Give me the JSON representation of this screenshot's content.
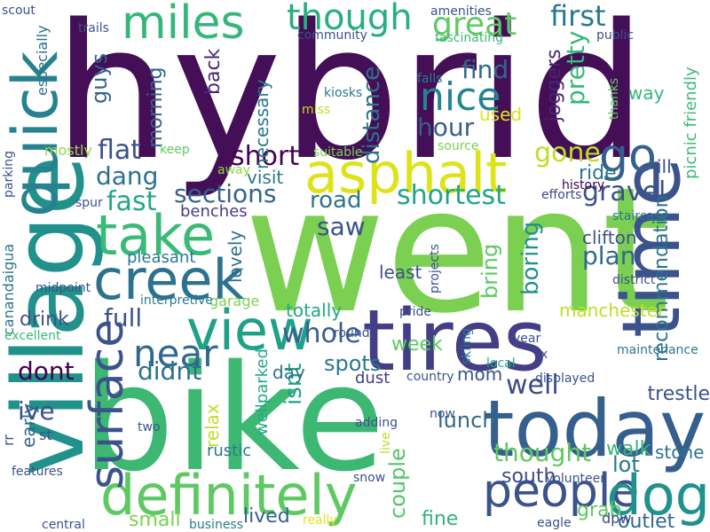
{
  "words": [
    {
      "text": "hybrid",
      "color": "#440f56",
      "rotate": false
    },
    {
      "text": "went",
      "color": "#7bd052",
      "rotate": false
    },
    {
      "text": "bike",
      "color": "#3cb873",
      "rotate": false
    },
    {
      "text": "village",
      "color": "#21918c",
      "rotate": true
    },
    {
      "text": "tires",
      "color": "#433e85",
      "rotate": false
    },
    {
      "text": "time",
      "color": "#3b528b",
      "rotate": true
    },
    {
      "text": "today",
      "color": "#355f8d",
      "rotate": false
    },
    {
      "text": "asphalt",
      "color": "#dde318",
      "rotate": false
    },
    {
      "text": "definitely",
      "color": "#5ec962",
      "rotate": false
    },
    {
      "text": "creek",
      "color": "#2c728e",
      "rotate": false
    },
    {
      "text": "miles",
      "color": "#35b779",
      "rotate": false
    },
    {
      "text": "take",
      "color": "#3aba76",
      "rotate": false
    },
    {
      "text": "view",
      "color": "#1fa187",
      "rotate": false
    },
    {
      "text": "people",
      "color": "#3b528b",
      "rotate": false
    },
    {
      "text": "quick",
      "color": "#26828e",
      "rotate": true
    },
    {
      "text": "dog",
      "color": "#21918c",
      "rotate": false
    },
    {
      "text": "go",
      "color": "#355f8d",
      "rotate": false
    },
    {
      "text": "surface",
      "color": "#3b528b",
      "rotate": true
    },
    {
      "text": "nice",
      "color": "#25858e",
      "rotate": false
    },
    {
      "text": "though",
      "color": "#29af7f",
      "rotate": false
    },
    {
      "text": "great",
      "color": "#5ec962",
      "rotate": false
    },
    {
      "text": "first",
      "color": "#2a788e",
      "rotate": false
    },
    {
      "text": "near",
      "color": "#31688e",
      "rotate": false
    },
    {
      "text": "distance",
      "color": "#2c728e",
      "rotate": true
    },
    {
      "text": "find",
      "color": "#31688e",
      "rotate": false
    },
    {
      "text": "pretty",
      "color": "#35b779",
      "rotate": true
    },
    {
      "text": "hour",
      "color": "#355f8d",
      "rotate": false
    },
    {
      "text": "guys",
      "color": "#33638d",
      "rotate": true
    },
    {
      "text": "flat",
      "color": "#3b528b",
      "rotate": false
    },
    {
      "text": "short",
      "color": "#440154",
      "rotate": false
    },
    {
      "text": "dang",
      "color": "#2c728e",
      "rotate": false
    },
    {
      "text": "fast",
      "color": "#22a884",
      "rotate": false
    },
    {
      "text": "sections",
      "color": "#33638d",
      "rotate": false
    },
    {
      "text": "shortest",
      "color": "#20a486",
      "rotate": false
    },
    {
      "text": "gravel",
      "color": "#3b528b",
      "rotate": false
    },
    {
      "text": "road",
      "color": "#2a788e",
      "rotate": false
    },
    {
      "text": "gone",
      "color": "#bddf26",
      "rotate": false
    },
    {
      "text": "ride",
      "color": "#2a788e",
      "rotate": false
    },
    {
      "text": "recommendation",
      "color": "#2c728e",
      "rotate": true
    },
    {
      "text": "picnic friendly",
      "color": "#3cbb75",
      "rotate": true
    },
    {
      "text": "plan",
      "color": "#31688e",
      "rotate": false
    },
    {
      "text": "boring",
      "color": "#21918c",
      "rotate": true
    },
    {
      "text": "bring",
      "color": "#5ec962",
      "rotate": true
    },
    {
      "text": "full",
      "color": "#3b528b",
      "rotate": false
    },
    {
      "text": "whole",
      "color": "#355f8d",
      "rotate": false
    },
    {
      "text": "didnt",
      "color": "#2c728e",
      "rotate": false
    },
    {
      "text": "dont",
      "color": "#440154",
      "rotate": false
    },
    {
      "text": "well",
      "color": "#3e4989",
      "rotate": false
    },
    {
      "text": "ive",
      "color": "#3b528b",
      "rotate": false
    },
    {
      "text": "thought",
      "color": "#5ec962",
      "rotate": false
    },
    {
      "text": "isnt",
      "color": "#1fa187",
      "rotate": true
    },
    {
      "text": "spots",
      "color": "#2a788e",
      "rotate": false
    },
    {
      "text": "lunch",
      "color": "#31688e",
      "rotate": false
    },
    {
      "text": "walk",
      "color": "#35b779",
      "rotate": false
    },
    {
      "text": "lot",
      "color": "#2a788e",
      "rotate": false
    },
    {
      "text": "couple",
      "color": "#52c569",
      "rotate": true
    },
    {
      "text": "small",
      "color": "#7ad151",
      "rotate": false
    },
    {
      "text": "lived",
      "color": "#33638d",
      "rotate": false
    },
    {
      "text": "grab",
      "color": "#5ec962",
      "rotate": false
    },
    {
      "text": "outlet",
      "color": "#31688e",
      "rotate": false
    },
    {
      "text": "fine",
      "color": "#2fb47c",
      "rotate": false
    },
    {
      "text": "stone",
      "color": "#2c728e",
      "rotate": false
    },
    {
      "text": "trestle",
      "color": "#3b528b",
      "rotate": false
    },
    {
      "text": "south",
      "color": "#3e4989",
      "rotate": false
    },
    {
      "text": "manchester",
      "color": "#bddf26",
      "rotate": false
    },
    {
      "text": "totally",
      "color": "#22a884",
      "rotate": false
    },
    {
      "text": "lovely",
      "color": "#2c728e",
      "rotate": true
    },
    {
      "text": "pleasant",
      "color": "#2a788e",
      "rotate": false
    },
    {
      "text": "benches",
      "color": "#433e85",
      "rotate": false
    },
    {
      "text": "visit",
      "color": "#2a788e",
      "rotate": false
    },
    {
      "text": "necessary",
      "color": "#2a788e",
      "rotate": true
    },
    {
      "text": "saw",
      "color": "#3b528b",
      "rotate": false
    },
    {
      "text": "drink",
      "color": "#3b528b",
      "rotate": false
    },
    {
      "text": "week",
      "color": "#5ec962",
      "rotate": false
    },
    {
      "text": "mom",
      "color": "#3b528b",
      "rotate": false
    },
    {
      "text": "day",
      "color": "#2c728e",
      "rotate": false
    },
    {
      "text": "used",
      "color": "#dde318",
      "rotate": false
    },
    {
      "text": "way",
      "color": "#35b779",
      "rotate": false
    },
    {
      "text": "joggers",
      "color": "#482475",
      "rotate": true
    },
    {
      "text": "morning",
      "color": "#33638d",
      "rotate": true
    },
    {
      "text": "back",
      "color": "#482878",
      "rotate": true
    },
    {
      "text": "clifton",
      "color": "#3b528b",
      "rotate": false
    },
    {
      "text": "least",
      "color": "#3b528b",
      "rotate": false
    },
    {
      "text": "mostly",
      "color": "#8fd744",
      "rotate": false
    },
    {
      "text": "wellparked",
      "color": "#22a884",
      "rotate": true
    },
    {
      "text": "relax",
      "color": "#bddf26",
      "rotate": true
    },
    {
      "text": "dust",
      "color": "#433e85",
      "rotate": false
    },
    {
      "text": "ill",
      "color": "#3b528b",
      "rotate": false
    },
    {
      "text": "history",
      "color": "#440154",
      "rotate": false
    },
    {
      "text": "efforts",
      "color": "#414487",
      "rotate": false
    },
    {
      "text": "dpw",
      "color": "#3e4989",
      "rotate": false
    },
    {
      "text": "canandaigua",
      "color": "#2a788e",
      "rotate": true
    },
    {
      "text": "rr",
      "color": "#3b528b",
      "rotate": true
    },
    {
      "text": "early",
      "color": "#31688e",
      "rotate": true
    },
    {
      "text": "st",
      "color": "#3b528b",
      "rotate": false
    },
    {
      "text": "rustic",
      "color": "#2a788e",
      "rotate": false
    },
    {
      "text": "garage",
      "color": "#7ad151",
      "rotate": false
    },
    {
      "text": "interpretive",
      "color": "#2a788e",
      "rotate": false
    },
    {
      "text": "especially",
      "color": "#2c728e",
      "rotate": true
    },
    {
      "text": "scout",
      "color": "#3b528b",
      "rotate": false
    },
    {
      "text": "trails",
      "color": "#3b528b",
      "rotate": false
    },
    {
      "text": "community",
      "color": "#3b528b",
      "rotate": false
    },
    {
      "text": "amenities",
      "color": "#3b528b",
      "rotate": false
    },
    {
      "text": "fascinating",
      "color": "#3cb873",
      "rotate": false
    },
    {
      "text": "public",
      "color": "#3b528b",
      "rotate": false
    },
    {
      "text": "falls",
      "color": "#2a788e",
      "rotate": false
    },
    {
      "text": "thanks",
      "color": "#5ec962",
      "rotate": true
    },
    {
      "text": "kiosks",
      "color": "#2a788e",
      "rotate": false
    },
    {
      "text": "miss",
      "color": "#bddf26",
      "rotate": false
    },
    {
      "text": "keep",
      "color": "#5ec962",
      "rotate": false
    },
    {
      "text": "suitable",
      "color": "#7ad151",
      "rotate": false
    },
    {
      "text": "source",
      "color": "#7ad151",
      "rotate": false
    },
    {
      "text": "away",
      "color": "#8fd744",
      "rotate": false
    },
    {
      "text": "spur",
      "color": "#3b528b",
      "rotate": false
    },
    {
      "text": "parking",
      "color": "#3b528b",
      "rotate": true
    },
    {
      "text": "staircase",
      "color": "#2a788e",
      "rotate": false
    },
    {
      "text": "midpoint",
      "color": "#3b528b",
      "rotate": false
    },
    {
      "text": "projects",
      "color": "#3b528b",
      "rotate": true
    },
    {
      "text": "district",
      "color": "#3b528b",
      "rotate": false
    },
    {
      "text": "excellent",
      "color": "#3cb873",
      "rotate": false
    },
    {
      "text": "pride",
      "color": "#3b528b",
      "rotate": false
    },
    {
      "text": "round",
      "color": "#3b528b",
      "rotate": false
    },
    {
      "text": "skiing",
      "color": "#2a788e",
      "rotate": true
    },
    {
      "text": "year",
      "color": "#3b528b",
      "rotate": false
    },
    {
      "text": "x",
      "color": "#3b528b",
      "rotate": false
    },
    {
      "text": "maintenance",
      "color": "#2a788e",
      "rotate": false
    },
    {
      "text": "local",
      "color": "#22a884",
      "rotate": false
    },
    {
      "text": "country",
      "color": "#3b528b",
      "rotate": false
    },
    {
      "text": "displayed",
      "color": "#3b528b",
      "rotate": false
    },
    {
      "text": "two",
      "color": "#3b528b",
      "rotate": false
    },
    {
      "text": "now",
      "color": "#3b528b",
      "rotate": false
    },
    {
      "text": "adding",
      "color": "#3b528b",
      "rotate": false
    },
    {
      "text": "live",
      "color": "#bddf26",
      "rotate": true
    },
    {
      "text": "features",
      "color": "#3b528b",
      "rotate": false
    },
    {
      "text": "snow",
      "color": "#3b528b",
      "rotate": false
    },
    {
      "text": "volunteer",
      "color": "#3b528b",
      "rotate": false
    },
    {
      "text": "eagle",
      "color": "#3b528b",
      "rotate": false
    },
    {
      "text": "central",
      "color": "#3b528b",
      "rotate": false
    },
    {
      "text": "business",
      "color": "#2a788e",
      "rotate": false
    },
    {
      "text": "really",
      "color": "#dde318",
      "rotate": false
    }
  ]
}
